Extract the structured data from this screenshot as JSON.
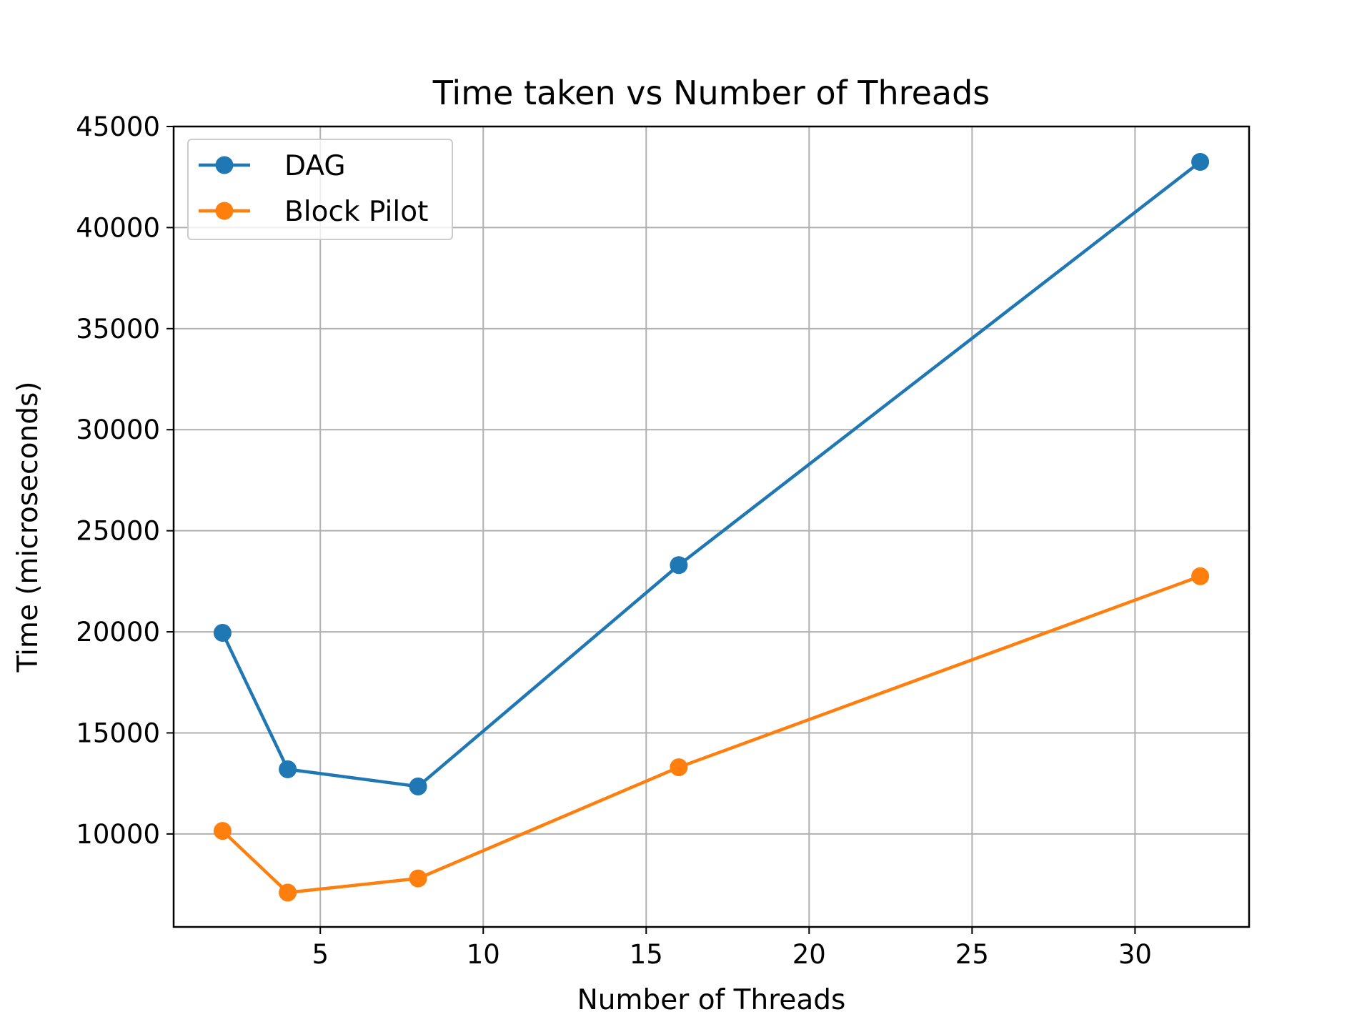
{
  "chart_data": {
    "type": "line",
    "title": "Time taken vs Number of Threads",
    "xlabel": "Number of Threads",
    "ylabel": "Time (microseconds)",
    "x": [
      2,
      4,
      8,
      16,
      32
    ],
    "series": [
      {
        "name": "DAG",
        "color": "#1f77b4",
        "values": [
          19950,
          13200,
          12350,
          23300,
          43250
        ]
      },
      {
        "name": "Block Pilot",
        "color": "#ff7f0e",
        "values": [
          10150,
          7100,
          7800,
          13300,
          22750
        ]
      }
    ],
    "xlim": [
      0.5,
      33.5
    ],
    "ylim": [
      5400,
      45000
    ],
    "xticks": [
      5,
      10,
      15,
      20,
      25,
      30
    ],
    "yticks": [
      10000,
      15000,
      20000,
      25000,
      30000,
      35000,
      40000,
      45000
    ],
    "xtick_labels": [
      "5",
      "10",
      "15",
      "20",
      "25",
      "30"
    ],
    "ytick_labels": [
      "10000",
      "15000",
      "20000",
      "25000",
      "30000",
      "35000",
      "40000",
      "45000"
    ],
    "grid": true,
    "legend_position": "top-left",
    "marker": "circle"
  }
}
